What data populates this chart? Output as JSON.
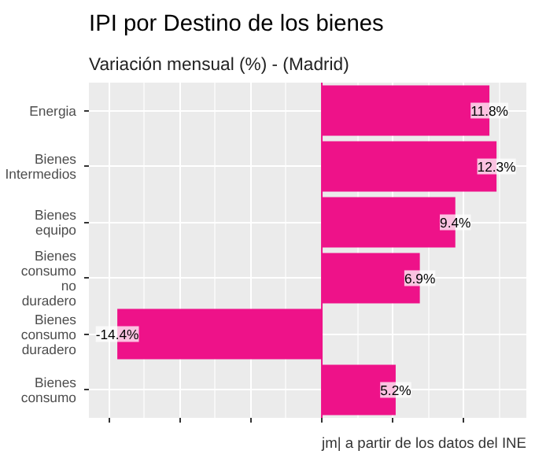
{
  "chart_data": {
    "type": "bar",
    "orientation": "horizontal",
    "title": "IPI por Destino de los bienes",
    "subtitle": "Variación mensual (%) - (Madrid)",
    "categories": [
      "Energia",
      "Bienes Intermedios",
      "Bienes equipo",
      "Bienes consumo no duradero",
      "Bienes consumo duradero",
      "Bienes consumo"
    ],
    "values": [
      11.8,
      12.3,
      9.4,
      6.9,
      -14.4,
      5.2
    ],
    "color": "#ee1289",
    "value_labels": [
      "11.8%",
      "12.3%",
      "9.4%",
      "6.9%",
      "-14.4%",
      "5.2%"
    ],
    "xlim": [
      -16.4,
      14.4
    ],
    "xticks": [
      {
        "value": -15,
        "label": null
      },
      {
        "value": -10,
        "label": null
      },
      {
        "value": -5,
        "label": null
      },
      {
        "value": 0,
        "label": null
      },
      {
        "value": 5,
        "label": null
      },
      {
        "value": 10,
        "label": null
      }
    ],
    "tick_labels": "y",
    "grid": true,
    "ref_lines": [
      {
        "axis": "x",
        "value": 0,
        "color": "#ee1289"
      }
    ],
    "annotations": [
      "jm| a partir de los datos del INE"
    ]
  }
}
